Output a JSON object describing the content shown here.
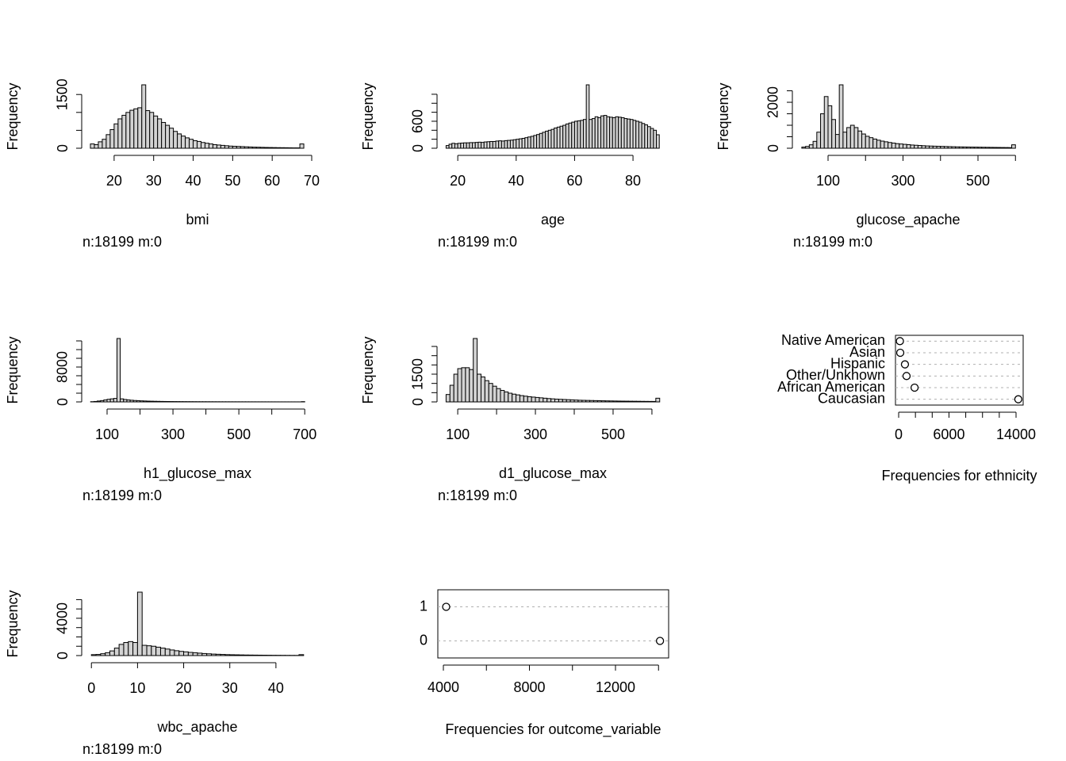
{
  "chart_data": [
    {
      "type": "histogram",
      "y_label": "Frequency",
      "x_label": "bmi",
      "note": "n:18199 m:0",
      "color": "#d3d3d3",
      "bins": [
        14,
        15,
        16,
        17,
        18,
        19,
        20,
        21,
        22,
        23,
        24,
        25,
        26,
        27,
        28,
        29,
        30,
        31,
        32,
        33,
        34,
        35,
        36,
        37,
        38,
        39,
        40,
        41,
        42,
        43,
        44,
        45,
        46,
        47,
        48,
        49,
        50,
        51,
        52,
        53,
        54,
        55,
        56,
        57,
        58,
        59,
        60,
        61,
        62,
        63,
        64,
        65,
        66,
        67,
        68
      ],
      "values": [
        120,
        100,
        180,
        250,
        380,
        520,
        680,
        820,
        920,
        1000,
        1060,
        1100,
        1130,
        1770,
        1050,
        1000,
        900,
        820,
        720,
        640,
        560,
        470,
        400,
        340,
        290,
        250,
        210,
        190,
        160,
        140,
        120,
        100,
        90,
        80,
        70,
        60,
        55,
        50,
        45,
        40,
        35,
        30,
        28,
        25,
        22,
        20,
        18,
        16,
        15,
        14,
        12,
        10,
        10,
        120
      ],
      "xlim": [
        13.2,
        70.4
      ],
      "xticks": [
        20,
        30,
        40,
        50,
        60,
        70
      ],
      "ylim": [
        0,
        1770
      ],
      "yticks": [
        0,
        1500
      ],
      "yticks_minor": [
        500,
        1000
      ]
    },
    {
      "type": "histogram",
      "y_label": "Frequency",
      "x_label": "age",
      "note": "n:18199 m:0",
      "color": "#d3d3d3",
      "bins": [
        16,
        17,
        18,
        19,
        20,
        21,
        22,
        23,
        24,
        25,
        26,
        27,
        28,
        29,
        30,
        31,
        32,
        33,
        34,
        35,
        36,
        37,
        38,
        39,
        40,
        41,
        42,
        43,
        44,
        45,
        46,
        47,
        48,
        49,
        50,
        51,
        52,
        53,
        54,
        55,
        56,
        57,
        58,
        59,
        60,
        61,
        62,
        63,
        64,
        65,
        66,
        67,
        68,
        69,
        70,
        71,
        72,
        73,
        74,
        75,
        76,
        77,
        78,
        79,
        80,
        81,
        82,
        83,
        84,
        85,
        86,
        87,
        88,
        89
      ],
      "values": [
        60,
        90,
        110,
        100,
        110,
        115,
        120,
        120,
        125,
        125,
        130,
        135,
        130,
        140,
        145,
        150,
        150,
        160,
        165,
        160,
        170,
        175,
        180,
        190,
        200,
        210,
        220,
        235,
        250,
        265,
        285,
        305,
        330,
        355,
        380,
        400,
        420,
        450,
        470,
        490,
        510,
        540,
        560,
        580,
        600,
        610,
        620,
        640,
        1410,
        640,
        660,
        700,
        680,
        720,
        730,
        700,
        690,
        680,
        700,
        690,
        680,
        660,
        650,
        640,
        620,
        600,
        580,
        550,
        520,
        480,
        440,
        400,
        300
      ],
      "xlim": [
        14.8,
        92.2
      ],
      "xticks": [
        20,
        40,
        60,
        80
      ],
      "ylim": [
        0,
        1410
      ],
      "yticks": [
        0,
        600
      ],
      "yticks_minor": [
        200,
        400,
        800,
        1000,
        1200
      ]
    },
    {
      "type": "histogram",
      "y_label": "Frequency",
      "x_label": "glucose_apache",
      "note": "n:18199 m:0",
      "color": "#d3d3d3",
      "bins": [
        30,
        40,
        50,
        60,
        70,
        80,
        90,
        100,
        110,
        120,
        130,
        140,
        150,
        160,
        170,
        180,
        190,
        200,
        210,
        220,
        230,
        240,
        250,
        260,
        270,
        280,
        290,
        300,
        310,
        320,
        330,
        340,
        350,
        360,
        370,
        380,
        390,
        400,
        410,
        420,
        430,
        440,
        450,
        460,
        470,
        480,
        490,
        500,
        510,
        520,
        530,
        540,
        550,
        560,
        570,
        580,
        590,
        600
      ],
      "values": [
        50,
        80,
        150,
        300,
        700,
        1500,
        2250,
        1850,
        1250,
        600,
        2760,
        700,
        900,
        1000,
        900,
        750,
        620,
        520,
        460,
        400,
        350,
        310,
        280,
        250,
        225,
        200,
        185,
        170,
        155,
        140,
        130,
        120,
        110,
        100,
        95,
        90,
        85,
        80,
        75,
        70,
        65,
        60,
        58,
        55,
        52,
        50,
        48,
        45,
        42,
        40,
        38,
        36,
        34,
        32,
        30,
        28,
        150
      ],
      "xlim": [
        19.6,
        622.7
      ],
      "xticks": [
        100,
        300,
        500
      ],
      "xticks_minor": [
        200,
        400,
        600
      ],
      "ylim": [
        0,
        2760
      ],
      "yticks": [
        0,
        2000
      ],
      "yticks_minor": [
        500,
        1000,
        1500,
        2500
      ]
    },
    {
      "type": "histogram",
      "y_label": "Frequency",
      "x_label": "h1_glucose_max",
      "note": "n:18199 m:0",
      "color": "#d3d3d3",
      "bins": [
        50,
        60,
        70,
        80,
        90,
        100,
        110,
        120,
        130,
        140,
        150,
        160,
        170,
        180,
        190,
        200,
        210,
        220,
        230,
        240,
        250,
        260,
        270,
        280,
        290,
        300,
        310,
        320,
        330,
        340,
        350,
        360,
        370,
        380,
        390,
        400,
        410,
        420,
        430,
        440,
        450,
        460,
        470,
        480,
        490,
        500,
        510,
        520,
        530,
        540,
        550,
        560,
        570,
        580,
        590,
        600,
        610,
        620,
        630,
        640,
        650,
        660,
        670,
        680,
        690,
        700
      ],
      "values": [
        50,
        100,
        200,
        300,
        450,
        600,
        700,
        800,
        14550,
        700,
        550,
        450,
        380,
        320,
        280,
        240,
        210,
        180,
        160,
        140,
        125,
        110,
        100,
        90,
        82,
        75,
        70,
        65,
        60,
        56,
        52,
        48,
        45,
        42,
        40,
        38,
        36,
        34,
        32,
        30,
        28,
        27,
        26,
        25,
        24,
        23,
        22,
        21,
        20,
        19,
        18,
        17,
        16,
        15,
        14,
        13,
        12,
        11,
        10,
        10,
        9,
        9,
        8,
        8,
        60
      ],
      "xlim": [
        39.8,
        726
      ],
      "xticks": [
        100,
        300,
        500,
        700
      ],
      "xticks_minor": [
        200,
        400,
        600
      ],
      "ylim": [
        0,
        14550
      ],
      "yticks": [
        0,
        8000
      ],
      "yticks_minor": [
        2000,
        4000,
        6000,
        10000,
        12000,
        14000
      ]
    },
    {
      "type": "histogram",
      "y_label": "Frequency",
      "x_label": "d1_glucose_max",
      "note": "n:18199 m:0",
      "color": "#d3d3d3",
      "bins": [
        70,
        80,
        90,
        100,
        110,
        120,
        130,
        140,
        150,
        160,
        170,
        180,
        190,
        200,
        210,
        220,
        230,
        240,
        250,
        260,
        270,
        280,
        290,
        300,
        310,
        320,
        330,
        340,
        350,
        360,
        370,
        380,
        390,
        400,
        410,
        420,
        430,
        440,
        450,
        460,
        470,
        480,
        490,
        500,
        510,
        520,
        530,
        540,
        550,
        560,
        570,
        580,
        590,
        600,
        610,
        620
      ],
      "values": [
        400,
        900,
        1500,
        1800,
        1850,
        1850,
        1750,
        3430,
        1500,
        1350,
        1150,
        1000,
        850,
        720,
        620,
        540,
        470,
        420,
        380,
        340,
        310,
        280,
        260,
        240,
        220,
        200,
        180,
        165,
        150,
        140,
        130,
        120,
        110,
        100,
        90,
        85,
        80,
        75,
        70,
        65,
        60,
        55,
        52,
        48,
        45,
        42,
        40,
        37,
        35,
        33,
        30,
        28,
        26,
        25,
        200
      ],
      "xlim": [
        61,
        643
      ],
      "xticks": [
        100,
        300,
        500
      ],
      "xticks_minor": [
        200,
        400,
        600
      ],
      "ylim": [
        0,
        3430
      ],
      "yticks": [
        0,
        1500
      ],
      "yticks_minor": [
        500,
        1000,
        2000,
        2500,
        3000
      ]
    },
    {
      "type": "dotchart",
      "title": "Frequencies for ethnicity",
      "categories": [
        "Native American",
        "Asian",
        "Hispanic",
        "Other/Unkhown",
        "African American",
        "Caucasian"
      ],
      "values": [
        150,
        190,
        750,
        940,
        1900,
        14269
      ],
      "xlim": [
        -380,
        14850
      ],
      "xticks": [
        0,
        6000,
        14000
      ],
      "xticks_minor": [
        2000,
        4000,
        8000,
        10000,
        12000
      ]
    },
    {
      "type": "histogram",
      "y_label": "Frequency",
      "x_label": "wbc_apache",
      "note": "n:18199 m:0",
      "color": "#d3d3d3",
      "bins": [
        0,
        1,
        2,
        3,
        4,
        5,
        6,
        7,
        8,
        9,
        10,
        11,
        12,
        13,
        14,
        15,
        16,
        17,
        18,
        19,
        20,
        21,
        22,
        23,
        24,
        25,
        26,
        27,
        28,
        29,
        30,
        31,
        32,
        33,
        34,
        35,
        36,
        37,
        38,
        39,
        40,
        41,
        42,
        43,
        44,
        45,
        46
      ],
      "values": [
        100,
        120,
        200,
        300,
        500,
        800,
        1200,
        1400,
        1500,
        1400,
        6800,
        1100,
        1050,
        1000,
        900,
        800,
        700,
        600,
        520,
        450,
        400,
        340,
        300,
        260,
        220,
        190,
        160,
        140,
        120,
        100,
        90,
        80,
        70,
        60,
        55,
        50,
        45,
        40,
        35,
        30,
        28,
        25,
        22,
        20,
        18,
        100
      ],
      "xlim": [
        -0.9,
        48.1
      ],
      "xticks": [
        0,
        10,
        20,
        30,
        40
      ],
      "ylim": [
        0,
        6800
      ],
      "yticks": [
        0,
        4000
      ],
      "yticks_minor": [
        1000,
        2000,
        3000,
        5000,
        6000
      ]
    },
    {
      "type": "dotchart",
      "title": "Frequencies for outcome_variable",
      "categories": [
        "1",
        "0"
      ],
      "values": [
        4130,
        14069
      ],
      "xlim": [
        3742,
        14470
      ],
      "xticks": [
        4000,
        8000,
        12000
      ],
      "xticks_minor": [
        6000,
        10000,
        14000
      ]
    }
  ]
}
